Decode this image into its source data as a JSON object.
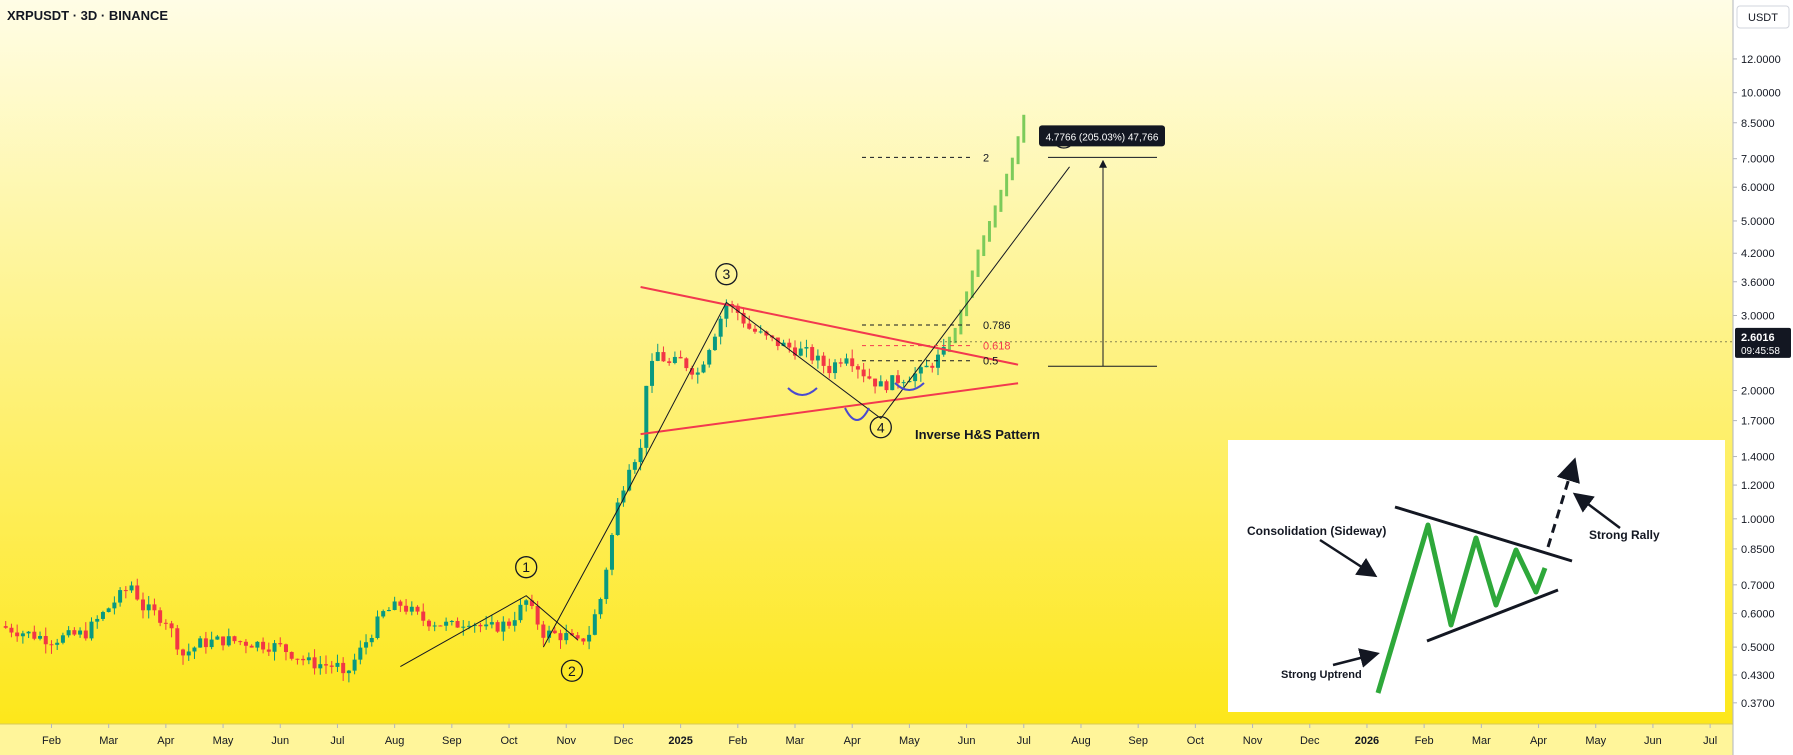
{
  "header": {
    "title": "XRPUSDT · 3D · BINANCE",
    "currency": "USDT"
  },
  "price_tag": {
    "price": "2.6016",
    "countdown": "09:45:58"
  },
  "measure_label": "4.7766 (205.03%) 47,766",
  "colors": {
    "bg_top": "#fffde6",
    "bg_bottom": "#fde71a",
    "candle_up": "#089981",
    "candle_down": "#f23645",
    "projection": "#7ccb5a",
    "trendline": "#f2394f",
    "pattern_arc": "#4a4ad0",
    "inset_green": "#2ea83a",
    "price_tag": "#131722"
  },
  "annotations": {
    "waves": [
      "1",
      "2",
      "3",
      "4",
      "5"
    ],
    "pattern_label": "Inverse H&S Pattern",
    "fib_2": "2",
    "fib_0786": "0.786",
    "fib_0618": "0.618",
    "fib_05": "0.5"
  },
  "inset": {
    "label_consolidation": "Consolidation (Sideway)",
    "label_rally": "Strong Rally",
    "label_uptrend": "Strong Uptrend"
  },
  "chart_data": {
    "type": "candlestick",
    "symbol": "XRPUSDT",
    "interval": "3D",
    "exchange": "BINANCE",
    "y_scale": "log",
    "ylim": [
      0.33,
      16.5
    ],
    "y_ticks": [
      {
        "label": "12.0000",
        "value": 12.0
      },
      {
        "label": "10.0000",
        "value": 10.0
      },
      {
        "label": "8.5000",
        "value": 8.5
      },
      {
        "label": "7.0000",
        "value": 7.0
      },
      {
        "label": "6.0000",
        "value": 6.0
      },
      {
        "label": "5.0000",
        "value": 5.0
      },
      {
        "label": "4.2000",
        "value": 4.2
      },
      {
        "label": "3.6000",
        "value": 3.6
      },
      {
        "label": "3.0000",
        "value": 3.0
      },
      {
        "label": "2.0000",
        "value": 2.0
      },
      {
        "label": "1.7000",
        "value": 1.7
      },
      {
        "label": "1.4000",
        "value": 1.4
      },
      {
        "label": "1.2000",
        "value": 1.2
      },
      {
        "label": "1.0000",
        "value": 1.0
      },
      {
        "label": "0.8500",
        "value": 0.85
      },
      {
        "label": "0.7000",
        "value": 0.7
      },
      {
        "label": "0.6000",
        "value": 0.6
      },
      {
        "label": "0.5000",
        "value": 0.5
      },
      {
        "label": "0.4300",
        "value": 0.43
      },
      {
        "label": "0.3700",
        "value": 0.37
      }
    ],
    "x_ticks": [
      {
        "label": "Feb",
        "t": 0
      },
      {
        "label": "Mar",
        "t": 1
      },
      {
        "label": "Apr",
        "t": 2
      },
      {
        "label": "May",
        "t": 3
      },
      {
        "label": "Jun",
        "t": 4
      },
      {
        "label": "Jul",
        "t": 5
      },
      {
        "label": "Aug",
        "t": 6
      },
      {
        "label": "Sep",
        "t": 7
      },
      {
        "label": "Oct",
        "t": 8
      },
      {
        "label": "Nov",
        "t": 9
      },
      {
        "label": "Dec",
        "t": 10
      },
      {
        "label": "2025",
        "t": 11
      },
      {
        "label": "Feb",
        "t": 12
      },
      {
        "label": "Mar",
        "t": 13
      },
      {
        "label": "Apr",
        "t": 14
      },
      {
        "label": "May",
        "t": 15
      },
      {
        "label": "Jun",
        "t": 16
      },
      {
        "label": "Jul",
        "t": 17
      },
      {
        "label": "Aug",
        "t": 18
      },
      {
        "label": "Sep",
        "t": 19
      },
      {
        "label": "Oct",
        "t": 20
      },
      {
        "label": "Nov",
        "t": 21
      },
      {
        "label": "Dec",
        "t": 22
      },
      {
        "label": "2026",
        "t": 23
      },
      {
        "label": "Feb",
        "t": 24
      },
      {
        "label": "Mar",
        "t": 25
      },
      {
        "label": "Apr",
        "t": 26
      },
      {
        "label": "May",
        "t": 27
      },
      {
        "label": "Jun",
        "t": 28
      },
      {
        "label": "Jul",
        "t": 29
      }
    ],
    "xlim": [
      -0.9,
      29.4
    ],
    "price_path": [
      [
        -0.9,
        0.56
      ],
      [
        0.0,
        0.52
      ],
      [
        0.6,
        0.54
      ],
      [
        1.1,
        0.64
      ],
      [
        1.4,
        0.7
      ],
      [
        1.6,
        0.62
      ],
      [
        2.0,
        0.58
      ],
      [
        2.3,
        0.48
      ],
      [
        2.6,
        0.51
      ],
      [
        3.0,
        0.52
      ],
      [
        3.6,
        0.51
      ],
      [
        4.0,
        0.5
      ],
      [
        4.5,
        0.46
      ],
      [
        5.0,
        0.45
      ],
      [
        5.1,
        0.42
      ],
      [
        5.4,
        0.49
      ],
      [
        5.8,
        0.6
      ],
      [
        6.1,
        0.63
      ],
      [
        6.5,
        0.58
      ],
      [
        7.0,
        0.56
      ],
      [
        7.3,
        0.58
      ],
      [
        7.6,
        0.55
      ],
      [
        8.0,
        0.57
      ],
      [
        8.3,
        0.64
      ],
      [
        8.6,
        0.54
      ],
      [
        9.0,
        0.53
      ],
      [
        9.2,
        0.51
      ],
      [
        9.4,
        0.54
      ],
      [
        9.6,
        0.65
      ],
      [
        9.9,
        1.08
      ],
      [
        10.1,
        1.35
      ],
      [
        10.3,
        1.45
      ],
      [
        10.4,
        2.1
      ],
      [
        10.6,
        2.45
      ],
      [
        10.8,
        2.3
      ],
      [
        11.0,
        2.35
      ],
      [
        11.3,
        2.2
      ],
      [
        11.6,
        2.75
      ],
      [
        11.8,
        3.2
      ],
      [
        12.0,
        3.05
      ],
      [
        12.2,
        2.8
      ],
      [
        12.5,
        2.65
      ],
      [
        12.8,
        2.55
      ],
      [
        13.2,
        2.45
      ],
      [
        13.6,
        2.25
      ],
      [
        13.9,
        2.45
      ],
      [
        14.2,
        2.2
      ],
      [
        14.5,
        2.05
      ],
      [
        14.9,
        2.15
      ],
      [
        15.2,
        2.2
      ],
      [
        15.6,
        2.45
      ]
    ],
    "projection_path": [
      [
        15.6,
        2.5
      ],
      [
        15.8,
        2.75
      ],
      [
        16.0,
        3.35
      ],
      [
        16.2,
        4.2
      ],
      [
        16.4,
        4.9
      ],
      [
        16.6,
        5.8
      ],
      [
        16.8,
        6.9
      ],
      [
        17.0,
        8.7
      ]
    ],
    "current_price": 2.6016,
    "lines": {
      "upper_trendline": [
        [
          10.3,
          3.5
        ],
        [
          16.9,
          2.3
        ]
      ],
      "lower_trendline": [
        [
          10.3,
          1.58
        ],
        [
          16.9,
          2.08
        ]
      ],
      "wave_path": [
        [
          8.6,
          0.5
        ],
        [
          9.9,
          1.05
        ],
        [
          11.8,
          3.22
        ],
        [
          14.5,
          1.72
        ],
        [
          17.8,
          6.7
        ]
      ],
      "wave_1_to_2": [
        [
          6.1,
          0.45
        ],
        [
          8.3,
          0.66
        ],
        [
          9.2,
          0.52
        ]
      ]
    },
    "fib_levels": [
      {
        "label": "2",
        "value": 7.05
      },
      {
        "label": "0.786",
        "value": 2.85
      },
      {
        "label": "0.618",
        "value": 2.55
      },
      {
        "label": "0.5",
        "value": 2.35
      }
    ],
    "measure": {
      "from": 2.28,
      "to": 7.05,
      "label": "4.7766 (205.03%) 47,766"
    },
    "wave_labels": [
      {
        "label": "1",
        "t": 8.3,
        "value": 0.77
      },
      {
        "label": "2",
        "t": 9.1,
        "value": 0.44
      },
      {
        "label": "3",
        "t": 11.8,
        "value": 3.75
      },
      {
        "label": "4",
        "t": 14.5,
        "value": 1.64
      },
      {
        "label": "5",
        "t": 17.7,
        "value": 7.85
      }
    ]
  }
}
